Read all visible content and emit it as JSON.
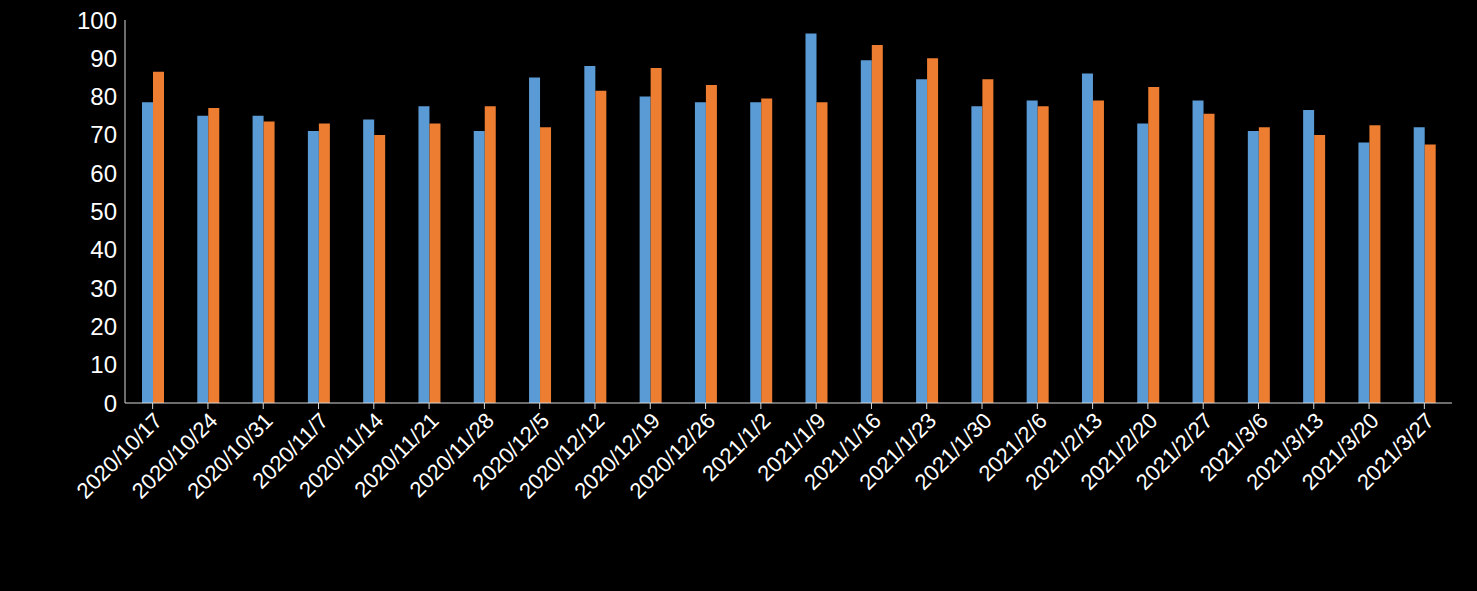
{
  "chart_data": {
    "type": "bar",
    "categories": [
      "2020/10/17",
      "2020/10/24",
      "2020/10/31",
      "2020/11/7",
      "2020/11/14",
      "2020/11/21",
      "2020/11/28",
      "2020/12/5",
      "2020/12/12",
      "2020/12/19",
      "2020/12/26",
      "2021/1/2",
      "2021/1/9",
      "2021/1/16",
      "2021/1/23",
      "2021/1/30",
      "2021/2/6",
      "2021/2/13",
      "2021/2/20",
      "2021/2/27",
      "2021/3/6",
      "2021/3/13",
      "2021/3/20",
      "2021/3/27"
    ],
    "series": [
      {
        "color": "#5b9bd5",
        "values": [
          78.5,
          75,
          75,
          71,
          74,
          77.5,
          71,
          85,
          88,
          80,
          78.5,
          78.5,
          96.5,
          89.5,
          84.5,
          77.5,
          79,
          86,
          73,
          79,
          71,
          76.5,
          68,
          72
        ]
      },
      {
        "color": "#ed7d31",
        "values": [
          86.5,
          77,
          73.5,
          73,
          70,
          73,
          77.5,
          72,
          81.5,
          87.5,
          83,
          79.5,
          78.5,
          93.5,
          90,
          84.5,
          77.5,
          79,
          82.5,
          75.5,
          72,
          70,
          72.5,
          67.5
        ]
      }
    ],
    "ylim": [
      0,
      100
    ],
    "yticks": [
      0,
      10,
      20,
      30,
      40,
      50,
      60,
      70,
      80,
      90,
      100
    ],
    "grid": false
  }
}
